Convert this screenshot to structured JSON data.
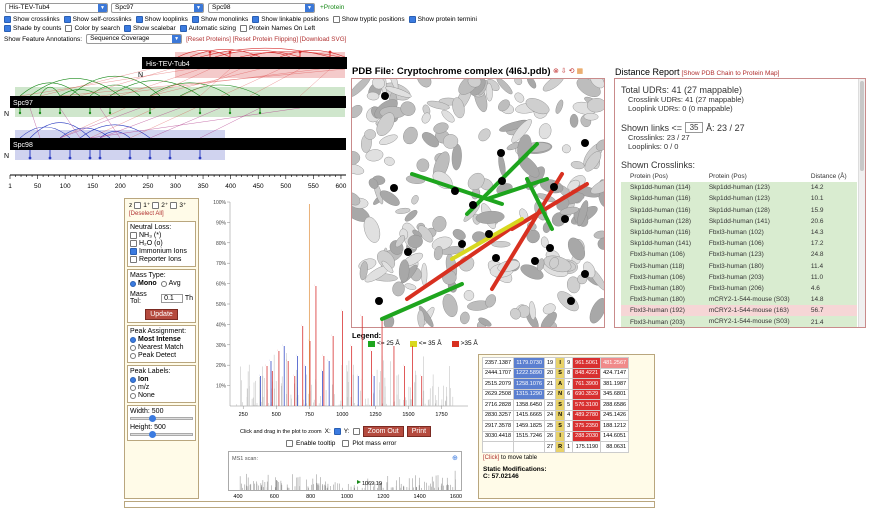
{
  "toolbar": {
    "protein1": "His-TEV-Tub4",
    "protein2": "Spc97",
    "protein3": "Spc98",
    "add_protein": "+Protein"
  },
  "options_row1": [
    {
      "label": "Show crosslinks",
      "checked": true
    },
    {
      "label": "Show self-crosslinks",
      "checked": true
    },
    {
      "label": "Show looplinks",
      "checked": true
    },
    {
      "label": "Show monolinks",
      "checked": true
    },
    {
      "label": "Show linkable positions",
      "checked": true
    },
    {
      "label": "Show tryptic positions",
      "checked": false
    },
    {
      "label": "Show protein termini",
      "checked": true
    }
  ],
  "options_row2": [
    {
      "label": "Shade by counts",
      "checked": true
    },
    {
      "label": "Color by search",
      "checked": false
    },
    {
      "label": "Show scalebar",
      "checked": true
    },
    {
      "label": "Automatic sizing",
      "checked": true
    },
    {
      "label": "Protein Names On Left",
      "checked": false
    }
  ],
  "feature": {
    "label": "Show Feature Annotations:",
    "value": "Sequence Coverage",
    "links": "[Reset Proteins] [Reset Protein Flipping] [Download SVG]"
  },
  "proteins": [
    "His-TEV-Tub4",
    "Spc97",
    "Spc98"
  ],
  "n_label": "N",
  "scale_ticks": [
    "1",
    "50",
    "100",
    "150",
    "200",
    "250",
    "300",
    "350",
    "400",
    "450",
    "500",
    "550",
    "600"
  ],
  "pdb": {
    "title": "PDB File: Cryptochrome complex (4I6J.pdb)"
  },
  "legend": {
    "title": "Legend:",
    "items": [
      {
        "label": "<= 25 Å",
        "color": "#1ea51e"
      },
      {
        "label": "<= 35 Å",
        "color": "#d8d820"
      },
      {
        "label": ">35 Å",
        "color": "#d83020"
      }
    ]
  },
  "distance": {
    "title": "Distance Report",
    "link": "[Show PDB Chain to Protein Map]",
    "total": "Total UDRs: 41 (27 mappable)",
    "crosslink_udrs": "Crosslink UDRs: 41 (27 mappable)",
    "looplink_udrs": "Looplink UDRs: 0 (0 mappable)",
    "shown_links_prefix": "Shown links <=",
    "shown_links_value": "35",
    "shown_links_suffix": "Å: 23 / 27",
    "crosslinks": "Crosslinks: 23 / 27",
    "looplinks": "Looplinks: 0 / 0",
    "shown_header": "Shown Crosslinks:",
    "columns": [
      "Protein (Pos)",
      "Protein (Pos)",
      "Distance (Å)"
    ],
    "rows": [
      {
        "p1": "Skp1dd-human (114)",
        "p2": "Skp1dd-human (123)",
        "d": "14.2",
        "color": "#d9ecd0"
      },
      {
        "p1": "Skp1dd-human (116)",
        "p2": "Skp1dd-human (123)",
        "d": "10.1",
        "color": "#d9ecd0"
      },
      {
        "p1": "Skp1dd-human (116)",
        "p2": "Skp1dd-human (128)",
        "d": "15.9",
        "color": "#d9ecd0"
      },
      {
        "p1": "Skp1dd-human (128)",
        "p2": "Skp1dd-human (141)",
        "d": "20.6",
        "color": "#d9ecd0"
      },
      {
        "p1": "Skp1dd-human (116)",
        "p2": "Fbxl3-human (102)",
        "d": "14.3",
        "color": "#d9ecd0"
      },
      {
        "p1": "Skp1dd-human (141)",
        "p2": "Fbxl3-human (106)",
        "d": "17.2",
        "color": "#d9ecd0"
      },
      {
        "p1": "Fbxl3-human (106)",
        "p2": "Fbxl3-human (123)",
        "d": "24.8",
        "color": "#d9ecd0"
      },
      {
        "p1": "Fbxl3-human (118)",
        "p2": "Fbxl3-human (180)",
        "d": "11.4",
        "color": "#d9ecd0"
      },
      {
        "p1": "Fbxl3-human (106)",
        "p2": "Fbxl3-human (203)",
        "d": "11.0",
        "color": "#d9ecd0"
      },
      {
        "p1": "Fbxl3-human (180)",
        "p2": "Fbxl3-human (206)",
        "d": "4.6",
        "color": "#d9ecd0"
      },
      {
        "p1": "Fbxl3-human (180)",
        "p2": "mCRY2-1-544-mouse (S03)",
        "d": "14.8",
        "color": "#d9ecd0"
      },
      {
        "p1": "Fbxl3-human (192)",
        "p2": "mCRY2-1-544-mouse (163)",
        "d": "56.7",
        "color": "#f6d6d6"
      },
      {
        "p1": "Fbxl3-human (203)",
        "p2": "mCRY2-1-544-mouse (S03)",
        "d": "21.4",
        "color": "#d9ecd0"
      }
    ]
  },
  "lorikeet": {
    "ion_labels": [
      "z",
      "1⁺",
      "2⁺",
      "3⁺"
    ],
    "deselect": "[Deselect All]",
    "neutral_loss_title": "Neutral Loss:",
    "neutral": [
      {
        "label": "NH₃ (*)",
        "checked": false
      },
      {
        "label": "H₂O (o)",
        "checked": false
      },
      {
        "label": "Immonium Ions",
        "checked": true
      },
      {
        "label": "Reporter Ions",
        "checked": false
      }
    ],
    "mass_type_title": "Mass Type:",
    "mass_type": [
      {
        "label": "Mono",
        "checked": true
      },
      {
        "label": "Avg",
        "checked": false
      }
    ],
    "mass_tol_label": "Mass Tol:",
    "mass_tol_value": "0.1",
    "mass_tol_unit": "Th",
    "update": "Update",
    "peak_assign_title": "Peak Assignment:",
    "peak_assign": [
      {
        "label": "Most Intense",
        "checked": true
      },
      {
        "label": "Nearest Match",
        "checked": false
      },
      {
        "label": "Peak Detect",
        "checked": false
      }
    ],
    "peak_labels_title": "Peak Labels:",
    "peak_labels": [
      {
        "label": "Ion",
        "checked": true
      },
      {
        "label": "m/z",
        "checked": false
      },
      {
        "label": "None",
        "checked": false
      }
    ],
    "width_label": "Width: 500",
    "height_label": "Height: 500",
    "zoom_hint": "Click and drag in the plot to zoom",
    "x_label": "X:",
    "y_label": "Y:",
    "zoom_out": "Zoom Out",
    "print": "Print",
    "enable_tooltip": "Enable tooltip",
    "plot_mass_error": "Plot mass error",
    "y_ticks": [
      "100%",
      "90%",
      "80%",
      "70%",
      "60%",
      "50%",
      "40%",
      "30%",
      "20%",
      "10%"
    ],
    "x_ticks": [
      "250",
      "500",
      "750",
      "1000",
      "1250",
      "1500",
      "1750"
    ],
    "ms1_label": "MS1 scan:",
    "ms1_peak": "1069.19",
    "ms1_ticks": [
      "400",
      "600",
      "800",
      "1000",
      "1200",
      "1400",
      "1600"
    ],
    "click_move": "[Click]",
    "click_move_text": "to move table",
    "static_mod": "Static Modifications:",
    "static_c": "C: 57.02146"
  },
  "frag_table": [
    [
      "2357.1387",
      "1179.0730",
      "19",
      "I",
      "9",
      "961.5061",
      "481.2567"
    ],
    [
      "2444.1707",
      "1222.5890",
      "20",
      "S",
      "8",
      "848.4221",
      "424.7147"
    ],
    [
      "2515.2079",
      "1258.1076",
      "21",
      "A",
      "7",
      "761.3900",
      "381.1987"
    ],
    [
      "2629.2508",
      "1315.1290",
      "22",
      "N",
      "6",
      "690.3529",
      "345.6801"
    ],
    [
      "2716.2828",
      "1358.6450",
      "23",
      "S",
      "5",
      "576.3100",
      "288.6586"
    ],
    [
      "2830.3257",
      "1415.6665",
      "24",
      "N",
      "4",
      "489.2780",
      "245.1426"
    ],
    [
      "2917.3578",
      "1459.1825",
      "25",
      "S",
      "3",
      "375.2350",
      "188.1212"
    ],
    [
      "3030.4418",
      "1515.7246",
      "26",
      "I",
      "2",
      "288.2030",
      "144.6051"
    ],
    [
      "",
      "",
      "27",
      "R",
      "1",
      "175.1190",
      "88.0631"
    ]
  ]
}
